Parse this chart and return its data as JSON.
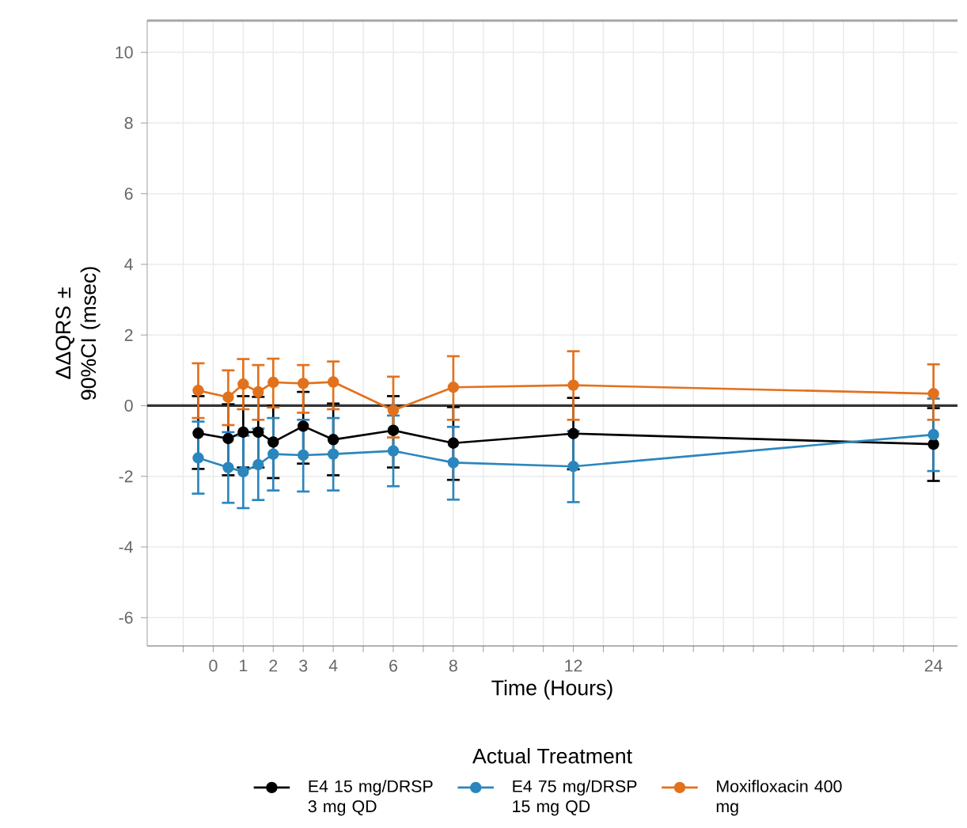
{
  "chart_data": {
    "type": "line",
    "xlabel": "Time (Hours)",
    "ylabel": "ΔΔQRS ± 90%CI (msec)",
    "legend_title": "Actual Treatment",
    "x": [
      -0.5,
      0.5,
      1,
      1.5,
      2,
      3,
      4,
      6,
      8,
      12,
      24
    ],
    "series": [
      {
        "name": "E4 15 mg/DRSP 3 mg QD",
        "color": "#000000",
        "values": [
          -0.78,
          -0.93,
          -0.75,
          -0.75,
          -1.03,
          -0.58,
          -0.96,
          -0.7,
          -1.06,
          -0.79,
          -1.09
        ],
        "errors": [
          [
            -1.79,
            0.27
          ],
          [
            -1.97,
            0.04
          ],
          [
            -1.75,
            0.27
          ],
          [
            -1.75,
            0.25
          ],
          [
            -2.05,
            0.0
          ],
          [
            -1.64,
            0.39
          ],
          [
            -1.97,
            0.06
          ],
          [
            -1.75,
            0.27
          ],
          [
            -2.1,
            -0.04
          ],
          [
            -1.8,
            0.22
          ],
          [
            -2.13,
            -0.07
          ]
        ]
      },
      {
        "name": "E4 75 mg/DRSP 15 mg QD",
        "color": "#2b86bd",
        "values": [
          -1.48,
          -1.75,
          -1.87,
          -1.67,
          -1.37,
          -1.4,
          -1.37,
          -1.28,
          -1.61,
          -1.72,
          -0.82
        ],
        "errors": [
          [
            -2.49,
            -0.45
          ],
          [
            -2.75,
            -0.75
          ],
          [
            -2.9,
            -0.85
          ],
          [
            -2.67,
            -0.65
          ],
          [
            -2.4,
            -0.35
          ],
          [
            -2.43,
            -0.4
          ],
          [
            -2.4,
            -0.35
          ],
          [
            -2.28,
            -0.28
          ],
          [
            -2.66,
            -0.6
          ],
          [
            -2.73,
            -0.72
          ],
          [
            -1.85,
            0.2
          ]
        ]
      },
      {
        "name": "Moxifloxacin 400 mg",
        "color": "#e2711d",
        "values": [
          0.43,
          0.24,
          0.61,
          0.39,
          0.66,
          0.63,
          0.67,
          -0.13,
          0.52,
          0.58,
          0.34
        ],
        "errors": [
          [
            -0.35,
            1.2
          ],
          [
            -0.55,
            1.0
          ],
          [
            -0.1,
            1.32
          ],
          [
            -0.4,
            1.15
          ],
          [
            -0.05,
            1.33
          ],
          [
            -0.2,
            1.15
          ],
          [
            -0.1,
            1.25
          ],
          [
            -0.9,
            0.82
          ],
          [
            -0.4,
            1.4
          ],
          [
            -0.4,
            1.54
          ],
          [
            -0.4,
            1.17
          ]
        ]
      }
    ],
    "xlim": [
      -2.2,
      24.8
    ],
    "ylim": [
      -6.8,
      10.9
    ],
    "xticks": [
      {
        "value": -1,
        "label": null
      },
      0,
      1,
      2,
      3,
      4,
      {
        "value": 5,
        "label": null
      },
      6,
      {
        "value": 7,
        "label": null
      },
      8,
      {
        "value": 9,
        "label": null
      },
      {
        "value": 10,
        "label": null
      },
      {
        "value": 11,
        "label": null
      },
      12,
      {
        "value": 13,
        "label": null
      },
      {
        "value": 14,
        "label": null
      },
      {
        "value": 15,
        "label": null
      },
      {
        "value": 16,
        "label": null
      },
      {
        "value": 17,
        "label": null
      },
      {
        "value": 18,
        "label": null
      },
      {
        "value": 19,
        "label": null
      },
      {
        "value": 20,
        "label": null
      },
      {
        "value": 21,
        "label": null
      },
      {
        "value": 22,
        "label": null
      },
      {
        "value": 23,
        "label": null
      },
      24
    ],
    "yticks": [
      -6,
      -4,
      -2,
      0,
      2,
      4,
      6,
      8,
      10
    ],
    "ref_lines": [
      {
        "axis": "y",
        "value": 0,
        "color": "#333333"
      }
    ],
    "grid": true,
    "legend": "bottom",
    "marker": "circle",
    "line_style": "solid"
  }
}
